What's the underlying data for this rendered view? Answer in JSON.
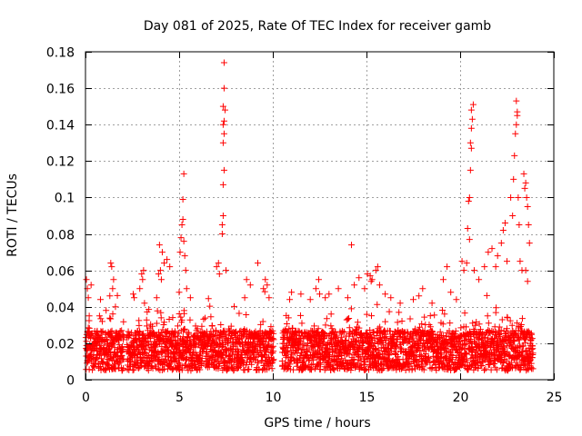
{
  "chart_data": {
    "type": "scatter",
    "title": "Day 081 of 2025, Rate Of TEC Index for receiver gamb",
    "xlabel": "GPS time / hours",
    "ylabel": "ROTI / TECUs",
    "xlim": [
      0,
      25
    ],
    "ylim": [
      0,
      0.18
    ],
    "xticks": [
      0,
      5,
      10,
      15,
      20,
      25
    ],
    "xtick_labels": [
      "0",
      "5",
      "10",
      "15",
      "20",
      "25"
    ],
    "yticks": [
      0,
      0.02,
      0.04,
      0.06,
      0.08,
      0.1,
      0.12,
      0.14,
      0.16,
      0.18
    ],
    "ytick_labels": [
      "0",
      "0.02",
      "0.04",
      "0.06",
      "0.08",
      "0.1",
      "0.12",
      "0.14",
      "0.16",
      "0.18"
    ],
    "grid": true,
    "marker": "+",
    "color": "#ff0000",
    "gaps_hours": [
      [
        2.05,
        2.2
      ],
      [
        10.05,
        10.5
      ]
    ],
    "series": [
      {
        "name": "ROTI",
        "points": [
          [
            0.05,
            0.055
          ],
          [
            0.1,
            0.05
          ],
          [
            0.15,
            0.045
          ],
          [
            0.3,
            0.052
          ],
          [
            0.2,
            0.035
          ],
          [
            0.8,
            0.044
          ],
          [
            1.1,
            0.038
          ],
          [
            1.3,
            0.046
          ],
          [
            1.45,
            0.05
          ],
          [
            1.5,
            0.055
          ],
          [
            1.35,
            0.064
          ],
          [
            1.4,
            0.062
          ],
          [
            1.6,
            0.04
          ],
          [
            2.55,
            0.047
          ],
          [
            2.6,
            0.045
          ],
          [
            2.9,
            0.05
          ],
          [
            3.0,
            0.058
          ],
          [
            3.05,
            0.055
          ],
          [
            3.1,
            0.06
          ],
          [
            3.15,
            0.042
          ],
          [
            3.8,
            0.045
          ],
          [
            3.9,
            0.058
          ],
          [
            3.95,
            0.074
          ],
          [
            4.0,
            0.06
          ],
          [
            4.05,
            0.055
          ],
          [
            4.1,
            0.07
          ],
          [
            4.2,
            0.064
          ],
          [
            4.35,
            0.066
          ],
          [
            4.5,
            0.062
          ],
          [
            5.0,
            0.048
          ],
          [
            5.05,
            0.07
          ],
          [
            5.1,
            0.078
          ],
          [
            5.15,
            0.085
          ],
          [
            5.2,
            0.088
          ],
          [
            5.25,
            0.076
          ],
          [
            5.3,
            0.068
          ],
          [
            5.35,
            0.06
          ],
          [
            5.2,
            0.099
          ],
          [
            5.25,
            0.113
          ],
          [
            5.4,
            0.05
          ],
          [
            5.6,
            0.045
          ],
          [
            7.0,
            0.062
          ],
          [
            7.1,
            0.064
          ],
          [
            7.15,
            0.058
          ],
          [
            7.3,
            0.08
          ],
          [
            7.35,
            0.09
          ],
          [
            7.35,
            0.107
          ],
          [
            7.4,
            0.115
          ],
          [
            7.35,
            0.13
          ],
          [
            7.4,
            0.135
          ],
          [
            7.35,
            0.14
          ],
          [
            7.4,
            0.142
          ],
          [
            7.45,
            0.148
          ],
          [
            7.35,
            0.15
          ],
          [
            7.4,
            0.16
          ],
          [
            7.4,
            0.174
          ],
          [
            7.3,
            0.085
          ],
          [
            7.5,
            0.06
          ],
          [
            8.5,
            0.045
          ],
          [
            8.6,
            0.055
          ],
          [
            8.8,
            0.052
          ],
          [
            9.2,
            0.064
          ],
          [
            9.5,
            0.05
          ],
          [
            9.6,
            0.055
          ],
          [
            9.7,
            0.052
          ],
          [
            9.8,
            0.045
          ],
          [
            10.9,
            0.044
          ],
          [
            11.0,
            0.048
          ],
          [
            11.5,
            0.047
          ],
          [
            12.0,
            0.044
          ],
          [
            12.3,
            0.05
          ],
          [
            12.45,
            0.055
          ],
          [
            12.5,
            0.047
          ],
          [
            12.8,
            0.045
          ],
          [
            13.0,
            0.047
          ],
          [
            13.5,
            0.05
          ],
          [
            14.0,
            0.045
          ],
          [
            14.2,
            0.074
          ],
          [
            14.35,
            0.052
          ],
          [
            14.6,
            0.056
          ],
          [
            14.9,
            0.05
          ],
          [
            15.05,
            0.058
          ],
          [
            15.2,
            0.057
          ],
          [
            15.25,
            0.054
          ],
          [
            15.3,
            0.055
          ],
          [
            15.5,
            0.06
          ],
          [
            15.6,
            0.062
          ],
          [
            15.7,
            0.052
          ],
          [
            16.0,
            0.047
          ],
          [
            16.3,
            0.045
          ],
          [
            16.8,
            0.042
          ],
          [
            17.5,
            0.044
          ],
          [
            17.8,
            0.046
          ],
          [
            18.0,
            0.05
          ],
          [
            18.5,
            0.042
          ],
          [
            19.1,
            0.055
          ],
          [
            19.3,
            0.062
          ],
          [
            19.5,
            0.048
          ],
          [
            19.8,
            0.044
          ],
          [
            20.1,
            0.065
          ],
          [
            20.2,
            0.06
          ],
          [
            20.35,
            0.064
          ],
          [
            20.4,
            0.083
          ],
          [
            20.45,
            0.098
          ],
          [
            20.5,
            0.1
          ],
          [
            20.55,
            0.115
          ],
          [
            20.6,
            0.127
          ],
          [
            20.55,
            0.13
          ],
          [
            20.6,
            0.138
          ],
          [
            20.65,
            0.143
          ],
          [
            20.6,
            0.148
          ],
          [
            20.7,
            0.151
          ],
          [
            20.5,
            0.077
          ],
          [
            20.75,
            0.06
          ],
          [
            21.0,
            0.055
          ],
          [
            21.3,
            0.062
          ],
          [
            21.5,
            0.07
          ],
          [
            21.7,
            0.072
          ],
          [
            21.9,
            0.062
          ],
          [
            22.0,
            0.068
          ],
          [
            22.2,
            0.075
          ],
          [
            22.3,
            0.082
          ],
          [
            22.4,
            0.086
          ],
          [
            22.5,
            0.065
          ],
          [
            22.7,
            0.1
          ],
          [
            22.8,
            0.09
          ],
          [
            22.85,
            0.11
          ],
          [
            22.9,
            0.123
          ],
          [
            22.95,
            0.135
          ],
          [
            23.0,
            0.14
          ],
          [
            23.05,
            0.145
          ],
          [
            23.05,
            0.147
          ],
          [
            23.0,
            0.153
          ],
          [
            23.1,
            0.1
          ],
          [
            23.15,
            0.085
          ],
          [
            23.2,
            0.065
          ],
          [
            23.3,
            0.06
          ],
          [
            23.4,
            0.113
          ],
          [
            23.45,
            0.105
          ],
          [
            23.5,
            0.108
          ],
          [
            23.55,
            0.1
          ],
          [
            23.6,
            0.095
          ],
          [
            23.65,
            0.085
          ],
          [
            23.7,
            0.075
          ],
          [
            23.5,
            0.06
          ],
          [
            23.6,
            0.054
          ]
        ]
      }
    ]
  }
}
